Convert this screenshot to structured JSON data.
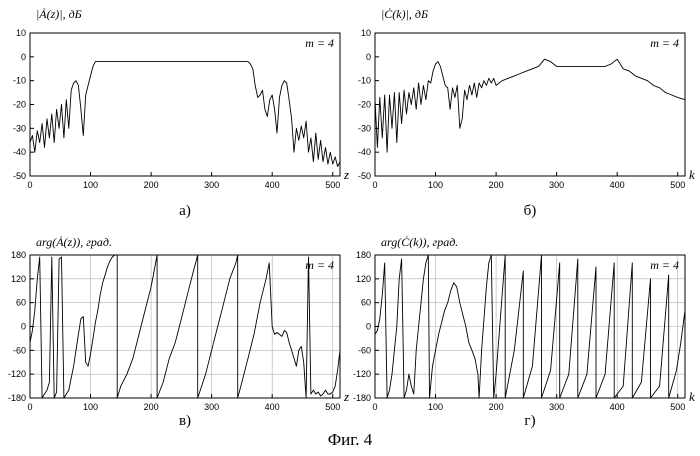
{
  "caption": "Фиг. 4",
  "colors": {
    "line": "#000000",
    "background": "#ffffff",
    "grid": "#b0b0b0"
  },
  "chart_data": [
    {
      "id": "a",
      "type": "line",
      "panel_label": "а)",
      "ylabel": "|Ȧ(z)|, дБ",
      "xvar": "z",
      "annotation": "m = 4",
      "xlim": [
        0,
        512
      ],
      "ylim": [
        -50,
        10
      ],
      "xticks": [
        0,
        100,
        200,
        300,
        400,
        500
      ],
      "yticks": [
        10,
        0,
        -10,
        -20,
        -30,
        -40,
        -50
      ],
      "grid": false,
      "x": [
        0,
        4,
        8,
        12,
        16,
        20,
        24,
        28,
        32,
        36,
        40,
        44,
        48,
        52,
        56,
        60,
        64,
        68,
        72,
        76,
        80,
        84,
        88,
        92,
        96,
        100,
        104,
        108,
        112,
        116,
        120,
        140,
        160,
        180,
        200,
        220,
        240,
        260,
        280,
        300,
        320,
        340,
        360,
        364,
        368,
        372,
        376,
        380,
        384,
        388,
        392,
        396,
        400,
        404,
        408,
        412,
        416,
        420,
        424,
        428,
        432,
        436,
        440,
        444,
        448,
        452,
        456,
        460,
        464,
        468,
        472,
        476,
        480,
        484,
        488,
        492,
        496,
        500,
        504,
        508,
        512
      ],
      "y": [
        -36,
        -33,
        -40,
        -31,
        -36,
        -28,
        -38,
        -26,
        -34,
        -24,
        -36,
        -22,
        -30,
        -20,
        -34,
        -18,
        -30,
        -14,
        -11,
        -10,
        -12,
        -22,
        -33,
        -16,
        -12,
        -8,
        -4,
        -2,
        -2,
        -2,
        -2,
        -2,
        -2,
        -2,
        -2,
        -2,
        -2,
        -2,
        -2,
        -2,
        -2,
        -2,
        -2,
        -3,
        -5,
        -12,
        -17,
        -16,
        -14,
        -22,
        -25,
        -18,
        -16,
        -22,
        -32,
        -17,
        -12,
        -10,
        -11,
        -18,
        -26,
        -40,
        -30,
        -35,
        -29,
        -34,
        -27,
        -40,
        -34,
        -44,
        -32,
        -43,
        -35,
        -44,
        -38,
        -45,
        -40,
        -45,
        -42,
        -46,
        -44
      ]
    },
    {
      "id": "b",
      "type": "line",
      "panel_label": "б)",
      "ylabel": "|Ċ(k)|, дБ",
      "xvar": "k",
      "annotation": "m = 4",
      "xlim": [
        0,
        512
      ],
      "ylim": [
        -50,
        10
      ],
      "xticks": [
        0,
        100,
        200,
        300,
        400,
        500
      ],
      "yticks": [
        10,
        0,
        -10,
        -20,
        -30,
        -40,
        -50
      ],
      "grid": false,
      "x": [
        0,
        4,
        8,
        12,
        16,
        20,
        24,
        28,
        32,
        36,
        40,
        44,
        48,
        52,
        56,
        60,
        64,
        68,
        72,
        76,
        80,
        84,
        88,
        92,
        96,
        100,
        104,
        108,
        112,
        116,
        120,
        124,
        128,
        132,
        136,
        140,
        144,
        148,
        152,
        156,
        160,
        164,
        168,
        172,
        176,
        180,
        184,
        188,
        192,
        196,
        200,
        210,
        220,
        230,
        240,
        250,
        260,
        270,
        280,
        290,
        300,
        320,
        340,
        360,
        380,
        390,
        400,
        410,
        420,
        430,
        440,
        450,
        460,
        470,
        480,
        490,
        500,
        512
      ],
      "y": [
        -18,
        -38,
        -17,
        -34,
        -16,
        -40,
        -16,
        -30,
        -15,
        -36,
        -15,
        -28,
        -14,
        -24,
        -15,
        -20,
        -13,
        -22,
        -11,
        -20,
        -12,
        -18,
        -10,
        -11,
        -6,
        -3,
        -2,
        -4,
        -8,
        -12,
        -13,
        -22,
        -13,
        -17,
        -12,
        -30,
        -26,
        -14,
        -18,
        -12,
        -16,
        -11,
        -17,
        -11,
        -13,
        -10,
        -12,
        -9,
        -11,
        -9,
        -12,
        -10,
        -9,
        -8,
        -7,
        -6,
        -5,
        -4,
        -1,
        -2,
        -4,
        -4,
        -4,
        -4,
        -4,
        -3,
        -1,
        -5,
        -6,
        -8,
        -9,
        -10,
        -12,
        -13,
        -15,
        -16,
        -17,
        -18
      ]
    },
    {
      "id": "c",
      "type": "line",
      "panel_label": "в)",
      "ylabel": "arg(Ȧ(z)), град.",
      "xvar": "z",
      "annotation": "m = 4",
      "xlim": [
        0,
        512
      ],
      "ylim": [
        -180,
        180
      ],
      "xticks": [
        0,
        100,
        200,
        300,
        400,
        500
      ],
      "yticks": [
        180,
        120,
        60,
        0,
        -60,
        -120,
        -180
      ],
      "grid": true,
      "x": [
        0,
        4,
        8,
        12,
        16,
        20,
        24,
        28,
        32,
        36,
        40,
        44,
        48,
        52,
        56,
        60,
        64,
        68,
        72,
        76,
        80,
        84,
        88,
        92,
        96,
        100,
        104,
        108,
        112,
        116,
        120,
        124,
        128,
        132,
        136,
        140,
        144,
        144,
        150,
        160,
        170,
        180,
        190,
        200,
        210,
        210,
        220,
        230,
        240,
        250,
        260,
        270,
        277,
        277,
        290,
        300,
        310,
        320,
        330,
        340,
        343,
        343,
        350,
        360,
        370,
        380,
        390,
        395,
        400,
        404,
        408,
        412,
        416,
        420,
        424,
        428,
        432,
        436,
        440,
        444,
        448,
        452,
        456,
        460,
        464,
        468,
        472,
        476,
        480,
        484,
        488,
        492,
        496,
        500,
        504,
        508,
        512
      ],
      "y": [
        -40,
        -10,
        40,
        120,
        175,
        -180,
        -170,
        -160,
        -140,
        175,
        -180,
        -165,
        170,
        175,
        -180,
        -170,
        -160,
        -130,
        -100,
        -60,
        -20,
        20,
        25,
        -90,
        -100,
        -70,
        -30,
        10,
        40,
        80,
        110,
        130,
        150,
        165,
        175,
        180,
        180,
        -180,
        -150,
        -120,
        -80,
        -20,
        40,
        100,
        180,
        -180,
        -140,
        -80,
        -40,
        20,
        80,
        140,
        180,
        -180,
        -120,
        -60,
        0,
        60,
        120,
        160,
        180,
        -180,
        -140,
        -80,
        -20,
        60,
        120,
        160,
        0,
        -20,
        -15,
        -20,
        -25,
        -10,
        -15,
        -40,
        -60,
        -80,
        -100,
        -60,
        -50,
        -90,
        -180,
        175,
        -170,
        -160,
        -170,
        -165,
        -175,
        -170,
        -160,
        -170,
        -170,
        -165,
        -150,
        -110,
        -60
      ]
    },
    {
      "id": "d",
      "type": "line",
      "panel_label": "г)",
      "ylabel": "arg(Ċ(k)), град.",
      "xvar": "k",
      "annotation": "m = 4",
      "xlim": [
        0,
        512
      ],
      "ylim": [
        -180,
        180
      ],
      "xticks": [
        0,
        100,
        200,
        300,
        400,
        500
      ],
      "yticks": [
        180,
        120,
        60,
        0,
        -60,
        -120,
        -180
      ],
      "grid": true,
      "x": [
        0,
        4,
        8,
        12,
        16,
        20,
        24,
        28,
        32,
        36,
        40,
        44,
        48,
        52,
        56,
        60,
        64,
        68,
        72,
        76,
        80,
        84,
        88,
        90,
        95,
        100,
        105,
        110,
        115,
        120,
        125,
        130,
        135,
        140,
        145,
        150,
        155,
        160,
        165,
        170,
        172,
        176,
        180,
        184,
        188,
        192,
        196,
        200,
        215,
        215,
        230,
        245,
        245,
        260,
        275,
        275,
        290,
        305,
        305,
        320,
        335,
        335,
        350,
        365,
        365,
        380,
        395,
        395,
        410,
        425,
        425,
        440,
        455,
        455,
        470,
        485,
        485,
        498,
        505,
        512
      ],
      "y": [
        -20,
        -10,
        20,
        80,
        160,
        -180,
        -160,
        -120,
        -60,
        0,
        120,
        170,
        -180,
        -160,
        -120,
        -150,
        -170,
        -60,
        0,
        60,
        120,
        160,
        180,
        -180,
        -100,
        -60,
        -20,
        10,
        40,
        60,
        90,
        110,
        100,
        60,
        30,
        0,
        -40,
        -60,
        -80,
        -120,
        -180,
        -60,
        20,
        100,
        160,
        180,
        -180,
        -120,
        180,
        -180,
        -60,
        140,
        -180,
        -100,
        180,
        -180,
        -110,
        160,
        -180,
        -120,
        170,
        -180,
        -120,
        150,
        -180,
        -120,
        160,
        -180,
        -150,
        160,
        -180,
        -140,
        120,
        -180,
        -150,
        130,
        -180,
        -110,
        -40,
        40
      ]
    }
  ]
}
